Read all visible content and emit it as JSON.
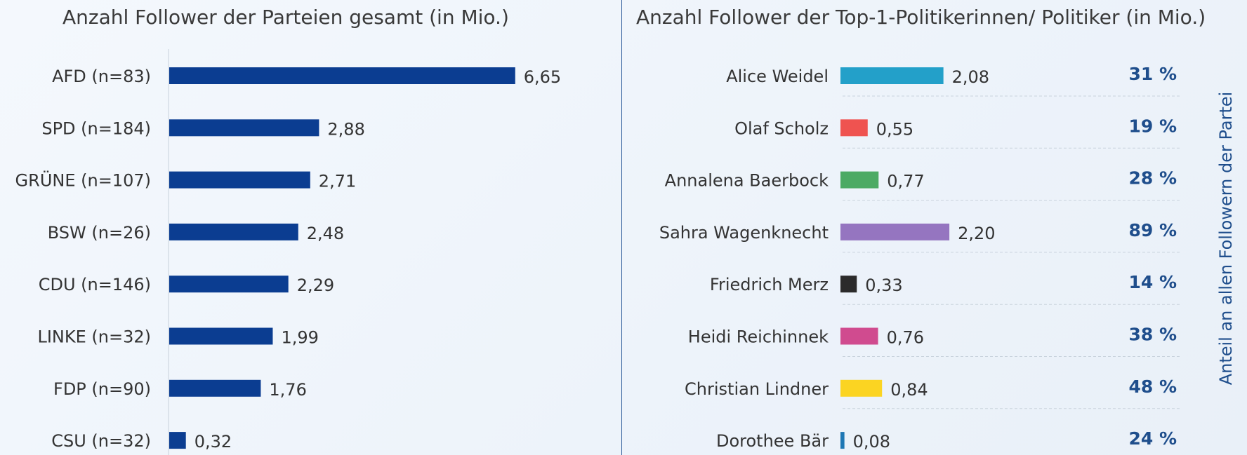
{
  "chart_data": [
    {
      "type": "bar",
      "orientation": "horizontal",
      "title": "Anzahl Follower der Parteien gesamt (in Mio.)",
      "categories": [
        "AFD (n=83)",
        "SPD (n=184)",
        "GRÜNE (n=107)",
        "BSW (n=26)",
        "CDU (n=146)",
        "LINKE (n=32)",
        "FDP (n=90)",
        "CSU (n=32)"
      ],
      "values": [
        6.65,
        2.88,
        2.71,
        2.48,
        2.29,
        1.99,
        1.76,
        0.32
      ],
      "value_labels": [
        "6,65",
        "2,88",
        "2,71",
        "2,48",
        "2,29",
        "1,99",
        "1,76",
        "0,32"
      ],
      "bar_color": "#0b3d91",
      "xlim": [
        0,
        7
      ]
    },
    {
      "type": "bar",
      "orientation": "horizontal",
      "title": "Anzahl Follower der Top-1-Politikerinnen/ Politiker (in Mio.)",
      "categories": [
        "Alice Weidel",
        "Olaf Scholz",
        "Annalena Baerbock",
        "Sahra Wagenknecht",
        "Friedrich Merz",
        "Heidi Reichinnek",
        "Christian Lindner",
        "Dorothee Bär"
      ],
      "values": [
        2.08,
        0.55,
        0.77,
        2.2,
        0.33,
        0.76,
        0.84,
        0.08
      ],
      "value_labels": [
        "2,08",
        "0,55",
        "0,77",
        "2,20",
        "0,33",
        "0,76",
        "0,84",
        "0,08"
      ],
      "colors": [
        "#23a0c9",
        "#ef5350",
        "#4caa64",
        "#9575c0",
        "#2b2b2b",
        "#d04b8f",
        "#fbd422",
        "#1f78b4"
      ],
      "xlim": [
        0,
        7
      ],
      "share_label": "Anteil an allen Followern der Partei",
      "shares": [
        "31 %",
        "19 %",
        "28 %",
        "89 %",
        "14 %",
        "38 %",
        "48 %",
        "24 %"
      ],
      "share_color": "#1f4e8c"
    }
  ]
}
